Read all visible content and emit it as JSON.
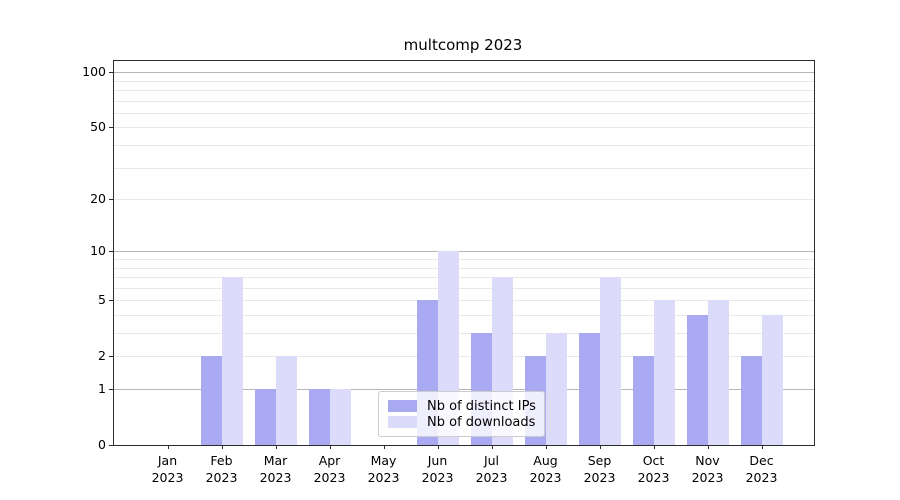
{
  "title": "multcomp 2023",
  "chart_data": {
    "type": "bar",
    "title": "multcomp 2023",
    "categories": [
      "Jan 2023",
      "Feb 2023",
      "Mar 2023",
      "Apr 2023",
      "May 2023",
      "Jun 2023",
      "Jul 2023",
      "Aug 2023",
      "Sep 2023",
      "Oct 2023",
      "Nov 2023",
      "Dec 2023"
    ],
    "series": [
      {
        "name": "Nb of distinct IPs",
        "color": "#aaaaf2",
        "values": [
          0,
          2,
          1,
          1,
          0,
          5,
          3,
          2,
          3,
          2,
          4,
          2
        ]
      },
      {
        "name": "Nb of downloads",
        "color": "#dcdcfa",
        "values": [
          0,
          7,
          2,
          1,
          0,
          10,
          7,
          3,
          7,
          5,
          5,
          4
        ]
      }
    ],
    "xlabel": "",
    "ylabel": "",
    "yscale": "log1p",
    "ylim": [
      0,
      115
    ],
    "y_ticks": [
      0,
      1,
      2,
      5,
      10,
      20,
      50,
      100
    ],
    "y_major_gridlines": [
      1,
      10,
      100
    ],
    "y_minor_gridlines": [
      2,
      3,
      4,
      5,
      6,
      7,
      8,
      9,
      20,
      30,
      40,
      50,
      60,
      70,
      80,
      90
    ],
    "grid": true,
    "legend_position": "lower center inside"
  },
  "legend": {
    "items": [
      {
        "label": "Nb of distinct IPs"
      },
      {
        "label": "Nb of downloads"
      }
    ]
  }
}
